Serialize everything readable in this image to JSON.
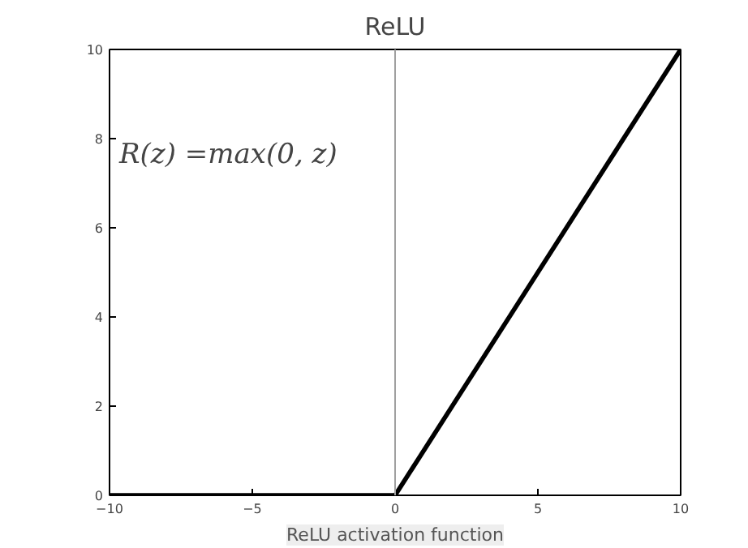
{
  "chart_data": {
    "type": "line",
    "title": "ReLU",
    "x": [
      -10,
      0,
      10
    ],
    "series": [
      {
        "color": "#000000",
        "values": [
          0,
          0,
          10
        ]
      }
    ],
    "xlim": [
      -10,
      10
    ],
    "ylim": [
      0,
      10
    ],
    "xticks": [
      {
        "value": -10,
        "label": "−10"
      },
      {
        "value": -5,
        "label": "−5"
      },
      0,
      5,
      10
    ],
    "yticks": [
      0,
      2,
      4,
      6,
      8,
      10
    ],
    "ref_lines": [
      {
        "axis": "x",
        "value": 0,
        "color": "#a0a0a0"
      }
    ],
    "annotations": [
      "R(z) =max(0,  z)",
      "ReLU activation function"
    ],
    "grid": false,
    "marker": "none",
    "line_style": "solid"
  }
}
